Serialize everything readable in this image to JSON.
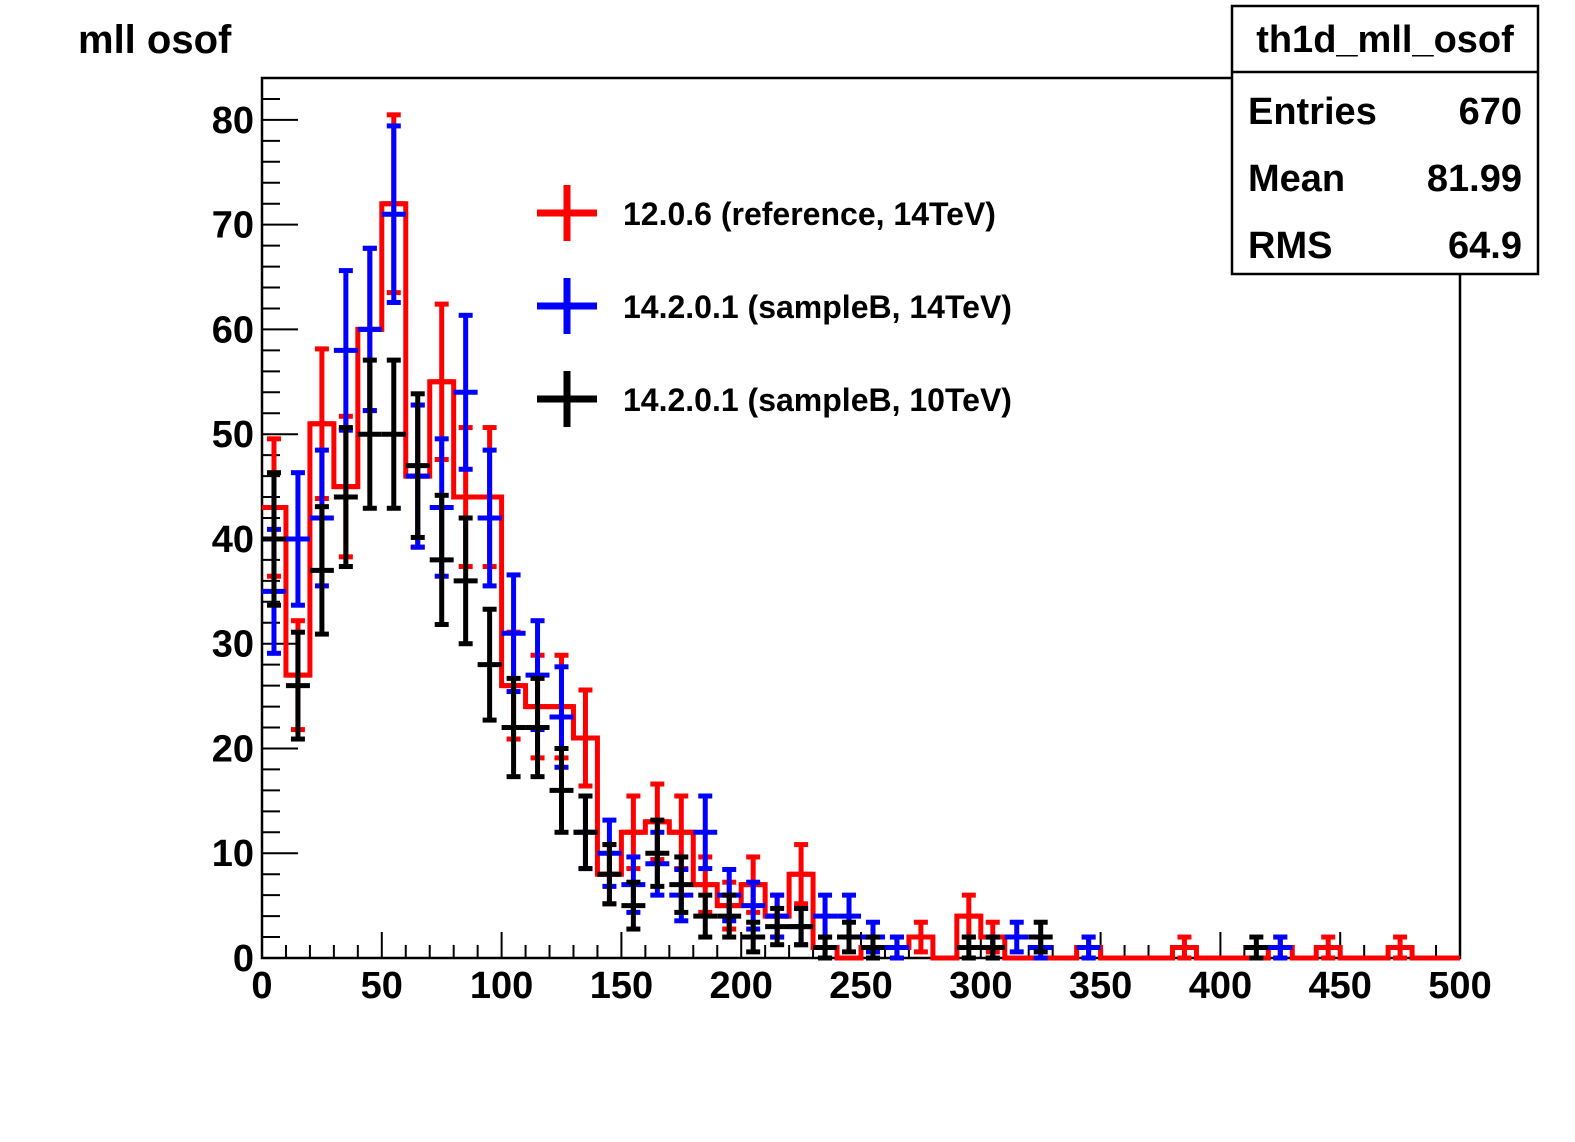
{
  "chart_data": {
    "type": "histogram",
    "title": "mll osof",
    "xlabel": "",
    "ylabel": "",
    "xlim": [
      0,
      500
    ],
    "ylim": [
      0,
      84
    ],
    "bin_width": 10,
    "x_ticks": [
      "0",
      "50",
      "100",
      "150",
      "200",
      "250",
      "300",
      "350",
      "400",
      "450",
      "500"
    ],
    "y_ticks": [
      "0",
      "10",
      "20",
      "30",
      "40",
      "50",
      "60",
      "70",
      "80"
    ],
    "legend_position": "upper-center",
    "stats_box": {
      "title": "th1d_mll_osof",
      "rows": [
        {
          "label": "Entries",
          "value": "670"
        },
        {
          "label": "Mean",
          "value": "81.99"
        },
        {
          "label": "RMS",
          "value": "64.9"
        }
      ]
    },
    "series": [
      {
        "name": "12.0.6 (reference, 14TeV)",
        "color": "#ff0000",
        "draw_steps": true,
        "values": [
          43,
          27,
          51,
          45,
          60,
          72,
          46,
          55,
          44,
          44,
          26,
          24,
          24,
          21,
          8,
          12,
          13,
          12,
          7,
          5,
          7,
          4,
          8,
          1,
          0,
          1,
          1,
          2,
          0,
          4,
          2,
          0,
          0,
          0,
          1,
          0,
          0,
          0,
          1,
          0,
          0,
          0,
          1,
          0,
          1,
          0,
          0,
          1,
          0,
          0
        ]
      },
      {
        "name": "14.2.0.1 (sampleB, 14TeV)",
        "color": "#0000ff",
        "draw_steps": false,
        "values": [
          35,
          40,
          42,
          58,
          60,
          71,
          46,
          43,
          54,
          42,
          31,
          27,
          23,
          12,
          10,
          7,
          9,
          6,
          12,
          6,
          5,
          4,
          3,
          4,
          4,
          2,
          1,
          0,
          0,
          0,
          1,
          2,
          1,
          0,
          1,
          0,
          0,
          0,
          0,
          0,
          0,
          0,
          1,
          0,
          0,
          0,
          0,
          0,
          0,
          0
        ]
      },
      {
        "name": "14.2.0.1 (sampleB, 10TeV)",
        "color": "#000000",
        "draw_steps": false,
        "values": [
          40,
          26,
          37,
          44,
          50,
          50,
          47,
          38,
          36,
          28,
          22,
          22,
          16,
          12,
          8,
          5,
          10,
          7,
          4,
          4,
          2,
          3,
          3,
          1,
          2,
          1,
          0,
          0,
          0,
          1,
          1,
          0,
          2,
          0,
          0,
          0,
          0,
          0,
          0,
          0,
          0,
          1,
          0,
          0,
          0,
          0,
          0,
          0,
          0,
          0
        ]
      }
    ]
  }
}
